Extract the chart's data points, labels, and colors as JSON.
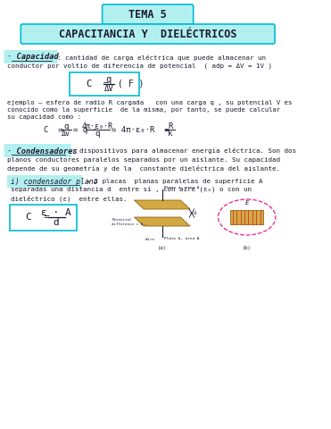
{
  "title1": "TEMA 5",
  "title2": "CAPACITANCIA Y  DIELÉCTRICOS",
  "bg_color": "#ffffff",
  "box_color": "#00bcd4",
  "text_color": "#1a1a2e",
  "highlight_cyan": "#b2f0f0",
  "section1_bullet": "· Capacidad",
  "section1_text1": ": cantidad de carga eléctrica que puede almacenar un",
  "section1_text2": "conductor por voltio de diferencia de potencial  ( adp = ΔV = 1V )",
  "example_text1": "ejemplo – esfera de radio R cargada   con una carga q , su potencial V es",
  "example_text2": "conocido como la superficie  de la misma, por tanto, se puede calcular",
  "example_text3": "su capacidad como :",
  "section2_bullet": "· Condensadores",
  "section2_text1": ": dispositivos para almacenar energía eléctrica. Son dos",
  "section2_text2": "planos conductores paralelos separados por un aislante. Su capacidad",
  "section2_text3": "depende de su geometría y de la  constante dieléctrica del aislante.",
  "sub1_label": "i) condensador plano",
  "sub1_text1": " → 2 placas  planas paralelas de superficie A",
  "sub1_text2": "separadas una distancia d  entre sí , con aire (ε₀) o con un",
  "sub1_text3": "dieléctrico (ε)  entre ellas."
}
